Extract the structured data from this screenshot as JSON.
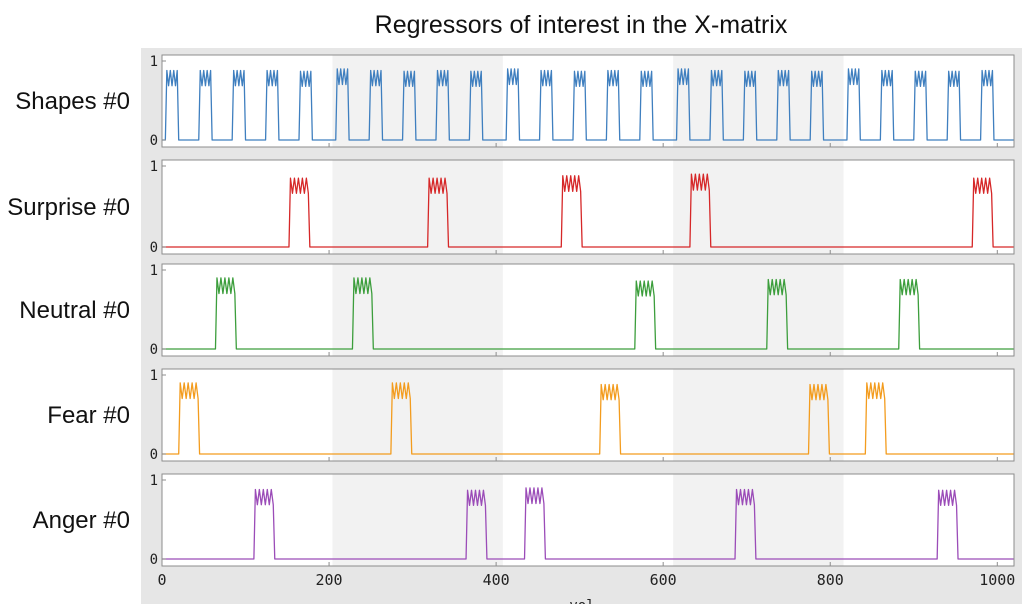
{
  "chart_data": {
    "type": "line",
    "title": "Regressors of interest in the X-matrix",
    "xlabel": "vol",
    "x_ticks": [
      0,
      200,
      400,
      600,
      800,
      1000
    ],
    "xlim": [
      0,
      1020
    ],
    "ylim": [
      0,
      1
    ],
    "y_ticks": [
      0,
      1
    ],
    "grid": false,
    "run_boundaries": [
      0,
      204,
      408,
      612,
      816,
      1020
    ],
    "series": [
      {
        "name": "Shapes #0",
        "color": "#3f7fbf",
        "blocks": [
          {
            "start": 4,
            "end": 20,
            "peak": 0.88
          },
          {
            "start": 44,
            "end": 60,
            "peak": 0.88
          },
          {
            "start": 84,
            "end": 100,
            "peak": 0.88
          },
          {
            "start": 124,
            "end": 140,
            "peak": 0.88
          },
          {
            "start": 164,
            "end": 180,
            "peak": 0.87
          },
          {
            "start": 208,
            "end": 224,
            "peak": 0.9
          },
          {
            "start": 248,
            "end": 264,
            "peak": 0.88
          },
          {
            "start": 288,
            "end": 304,
            "peak": 0.87
          },
          {
            "start": 328,
            "end": 344,
            "peak": 0.88
          },
          {
            "start": 368,
            "end": 384,
            "peak": 0.87
          },
          {
            "start": 412,
            "end": 428,
            "peak": 0.9
          },
          {
            "start": 452,
            "end": 468,
            "peak": 0.88
          },
          {
            "start": 492,
            "end": 508,
            "peak": 0.87
          },
          {
            "start": 532,
            "end": 548,
            "peak": 0.88
          },
          {
            "start": 572,
            "end": 588,
            "peak": 0.87
          },
          {
            "start": 616,
            "end": 632,
            "peak": 0.9
          },
          {
            "start": 656,
            "end": 672,
            "peak": 0.88
          },
          {
            "start": 696,
            "end": 712,
            "peak": 0.87
          },
          {
            "start": 736,
            "end": 752,
            "peak": 0.88
          },
          {
            "start": 776,
            "end": 792,
            "peak": 0.87
          },
          {
            "start": 820,
            "end": 836,
            "peak": 0.9
          },
          {
            "start": 860,
            "end": 876,
            "peak": 0.88
          },
          {
            "start": 900,
            "end": 916,
            "peak": 0.87
          },
          {
            "start": 940,
            "end": 956,
            "peak": 0.87
          },
          {
            "start": 980,
            "end": 996,
            "peak": 0.88
          }
        ]
      },
      {
        "name": "Surprise #0",
        "color": "#d62728",
        "blocks": [
          {
            "start": 152,
            "end": 177,
            "peak": 0.85
          },
          {
            "start": 318,
            "end": 343,
            "peak": 0.85
          },
          {
            "start": 478,
            "end": 503,
            "peak": 0.88
          },
          {
            "start": 632,
            "end": 657,
            "peak": 0.9
          },
          {
            "start": 970,
            "end": 995,
            "peak": 0.85
          }
        ]
      },
      {
        "name": "Neutral #0",
        "color": "#3c9e3c",
        "blocks": [
          {
            "start": 64,
            "end": 89,
            "peak": 0.9
          },
          {
            "start": 228,
            "end": 253,
            "peak": 0.9
          },
          {
            "start": 566,
            "end": 591,
            "peak": 0.86
          },
          {
            "start": 724,
            "end": 749,
            "peak": 0.88
          },
          {
            "start": 882,
            "end": 907,
            "peak": 0.88
          }
        ]
      },
      {
        "name": "Fear #0",
        "color": "#f39c1e",
        "blocks": [
          {
            "start": 20,
            "end": 45,
            "peak": 0.9
          },
          {
            "start": 274,
            "end": 299,
            "peak": 0.9
          },
          {
            "start": 524,
            "end": 549,
            "peak": 0.88
          },
          {
            "start": 774,
            "end": 799,
            "peak": 0.88
          },
          {
            "start": 842,
            "end": 867,
            "peak": 0.9
          }
        ]
      },
      {
        "name": "Anger #0",
        "color": "#9b4cb8",
        "blocks": [
          {
            "start": 110,
            "end": 135,
            "peak": 0.88
          },
          {
            "start": 364,
            "end": 389,
            "peak": 0.87
          },
          {
            "start": 434,
            "end": 459,
            "peak": 0.9
          },
          {
            "start": 686,
            "end": 711,
            "peak": 0.88
          },
          {
            "start": 928,
            "end": 953,
            "peak": 0.87
          }
        ]
      }
    ]
  }
}
